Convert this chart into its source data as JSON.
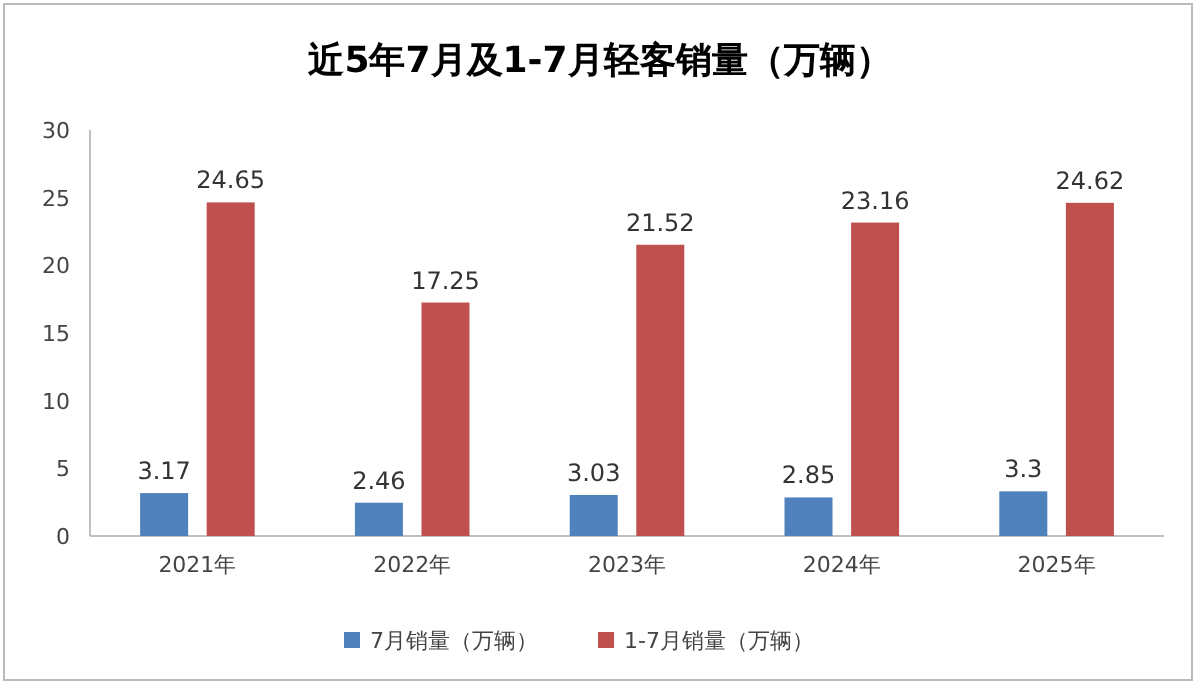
{
  "chart_data": {
    "type": "bar",
    "title": "近5年7月及1-7月轻客销量（万辆）",
    "categories": [
      "2021年",
      "2022年",
      "2023年",
      "2024年",
      "2025年"
    ],
    "series": [
      {
        "name": "7月销量（万辆）",
        "color": "#4f81bd",
        "values": [
          3.17,
          2.46,
          3.03,
          2.85,
          3.3
        ]
      },
      {
        "name": "1-7月销量（万辆）",
        "color": "#c0504d",
        "values": [
          24.65,
          17.25,
          21.52,
          23.16,
          24.62
        ]
      }
    ],
    "ylim": [
      0,
      30
    ],
    "yticks": [
      0,
      5,
      10,
      15,
      20,
      25,
      30
    ],
    "data_labels": true,
    "legend": "bottom"
  }
}
